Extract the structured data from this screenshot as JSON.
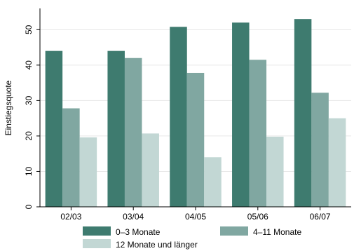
{
  "chart_data": {
    "type": "bar",
    "ylabel": "Einstiegsquote",
    "xlabel": "",
    "ylim": [
      0,
      56
    ],
    "yticks": [
      0,
      10,
      20,
      30,
      40,
      50
    ],
    "grid": true,
    "legend_position": "bottom",
    "categories": [
      "02/03",
      "03/04",
      "04/05",
      "05/06",
      "06/07"
    ],
    "series": [
      {
        "name": "0–3 Monate",
        "color": "#3e7b6f",
        "values": [
          44,
          44,
          50.8,
          52,
          53
        ]
      },
      {
        "name": "4–11 Monate",
        "color": "#80a7a1",
        "values": [
          27.8,
          42,
          37.8,
          41.5,
          32.2
        ]
      },
      {
        "name": "12 Monate und länger",
        "color": "#c2d7d4",
        "values": [
          19.6,
          20.7,
          14,
          19.8,
          25
        ]
      }
    ]
  }
}
